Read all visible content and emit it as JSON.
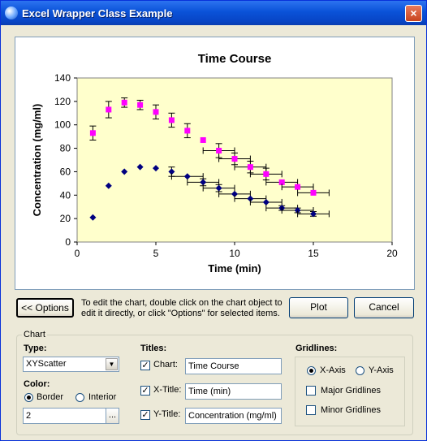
{
  "window": {
    "title": "Excel Wrapper Class Example",
    "close_glyph": "×"
  },
  "toolbar": {
    "options_label": "<< Options",
    "hint": "To edit the chart, double click on the chart object to edit it directly, or click \"Options\" for selected items.",
    "plot_label": "Plot",
    "cancel_label": "Cancel"
  },
  "chart_group": {
    "title": "Chart",
    "type_label": "Type:",
    "type_value": "XYScatter",
    "color_label": "Color:",
    "color_border": "Border",
    "color_interior": "Interior",
    "color_selected": "Border",
    "color_index": "2",
    "browse_label": "...",
    "titles_label": "Titles:",
    "chart_title_label": "Chart:",
    "chart_title_value": "Time Course",
    "xtitle_label": "X-Title:",
    "xtitle_value": "Time (min)",
    "ytitle_label": "Y-Title:",
    "ytitle_value": "Concentration (mg/ml)",
    "gridlines_label": "Gridlines:",
    "grid_xaxis": "X-Axis",
    "grid_yaxis": "Y-Axis",
    "grid_axis_selected": "X-Axis",
    "major_gridlines": "Major Gridlines",
    "minor_gridlines": "Minor Gridlines",
    "major_checked": false,
    "minor_checked": false
  },
  "chart_data": {
    "type": "scatter",
    "title": "Time Course",
    "xlabel": "Time (min)",
    "ylabel": "Concentration (mg/ml)",
    "xlim": [
      0,
      20
    ],
    "ylim": [
      0,
      140
    ],
    "xticks": [
      0,
      5,
      10,
      15,
      20
    ],
    "yticks": [
      0,
      20,
      40,
      60,
      80,
      100,
      120,
      140
    ],
    "plot_area_color": "#ffffcc",
    "series": [
      {
        "color": "#ff00ff",
        "marker": "square",
        "x": [
          1,
          2,
          3,
          4,
          5,
          6,
          7,
          8,
          9,
          10,
          11,
          12,
          13,
          14,
          15
        ],
        "y": [
          93,
          113,
          119,
          117,
          111,
          104,
          95,
          87,
          78,
          71,
          64,
          58,
          51,
          47,
          42
        ],
        "yerr": [
          6,
          7,
          4,
          4,
          6,
          6,
          6,
          0,
          6,
          5,
          5,
          5,
          0,
          0,
          0
        ],
        "xerr": [
          0,
          0,
          0,
          0,
          0,
          0,
          0,
          0,
          1,
          1,
          1,
          1,
          1,
          1,
          1
        ]
      },
      {
        "color": "#000080",
        "marker": "diamond",
        "x": [
          1,
          2,
          3,
          4,
          5,
          6,
          7,
          8,
          9,
          10,
          11,
          12,
          13,
          14,
          15
        ],
        "y": [
          21,
          48,
          60,
          64,
          63,
          60,
          56,
          51,
          46,
          41,
          37,
          34,
          29,
          27,
          24
        ],
        "yerr": [
          0,
          0,
          0,
          0,
          0,
          4,
          0,
          3,
          3,
          0,
          0,
          0,
          2,
          2,
          2
        ],
        "xerr": [
          0,
          0,
          0,
          0,
          0,
          0,
          1,
          1,
          1,
          1,
          1,
          1,
          1,
          1,
          1
        ]
      }
    ]
  }
}
